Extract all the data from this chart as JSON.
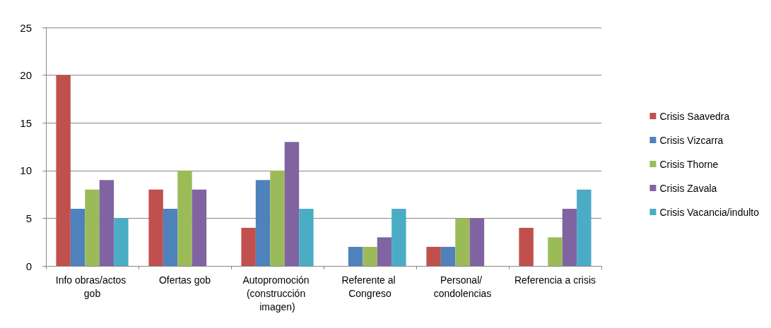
{
  "chart_data": {
    "type": "bar",
    "categories": [
      "Info obras/actos gob",
      "Ofertas gob",
      "Autopromoción (construcción imagen)",
      "Referente al Congreso",
      "Personal/ condolencias",
      "Referencia a crisis"
    ],
    "series": [
      {
        "name": "Crisis Saavedra",
        "color": "#c0504d",
        "values": [
          20,
          8,
          4,
          0,
          2,
          4
        ]
      },
      {
        "name": "Crisis Vizcarra",
        "color": "#4f81bd",
        "values": [
          6,
          6,
          9,
          2,
          2,
          0
        ]
      },
      {
        "name": "Crisis Thorne",
        "color": "#9bbb59",
        "values": [
          8,
          10,
          10,
          2,
          5,
          3
        ]
      },
      {
        "name": "Crisis Zavala",
        "color": "#8064a2",
        "values": [
          9,
          8,
          13,
          3,
          5,
          6
        ]
      },
      {
        "name": "Crisis Vacancia/indulto",
        "color": "#4bacc6",
        "values": [
          5,
          0,
          6,
          6,
          0,
          8
        ]
      }
    ],
    "ylim": [
      0,
      25
    ],
    "yticks": [
      0,
      5,
      10,
      15,
      20,
      25
    ],
    "grid": "y",
    "legend": "right"
  }
}
